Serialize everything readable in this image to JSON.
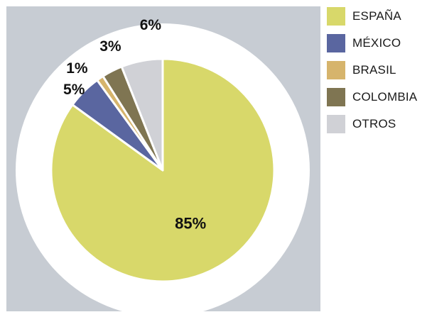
{
  "chart_data": {
    "type": "pie",
    "title": "",
    "start_angle_deg": 0,
    "direction": "clockwise",
    "legend_position": "right",
    "slices": [
      {
        "name": "ESPAÑA",
        "value": 85,
        "label": "85%",
        "color": "#d8d86a"
      },
      {
        "name": "MÉXICO",
        "value": 5,
        "label": "5%",
        "color": "#5a66a0"
      },
      {
        "name": "BRASIL",
        "value": 1,
        "label": "1%",
        "color": "#d6b46c"
      },
      {
        "name": "COLOMBIA",
        "value": 3,
        "label": "3%",
        "color": "#7f7552"
      },
      {
        "name": "OTROS",
        "value": 6,
        "label": "6%",
        "color": "#d0d1d6"
      }
    ],
    "ring_color": "#ffffff",
    "background_color": "#c7ccd3"
  }
}
